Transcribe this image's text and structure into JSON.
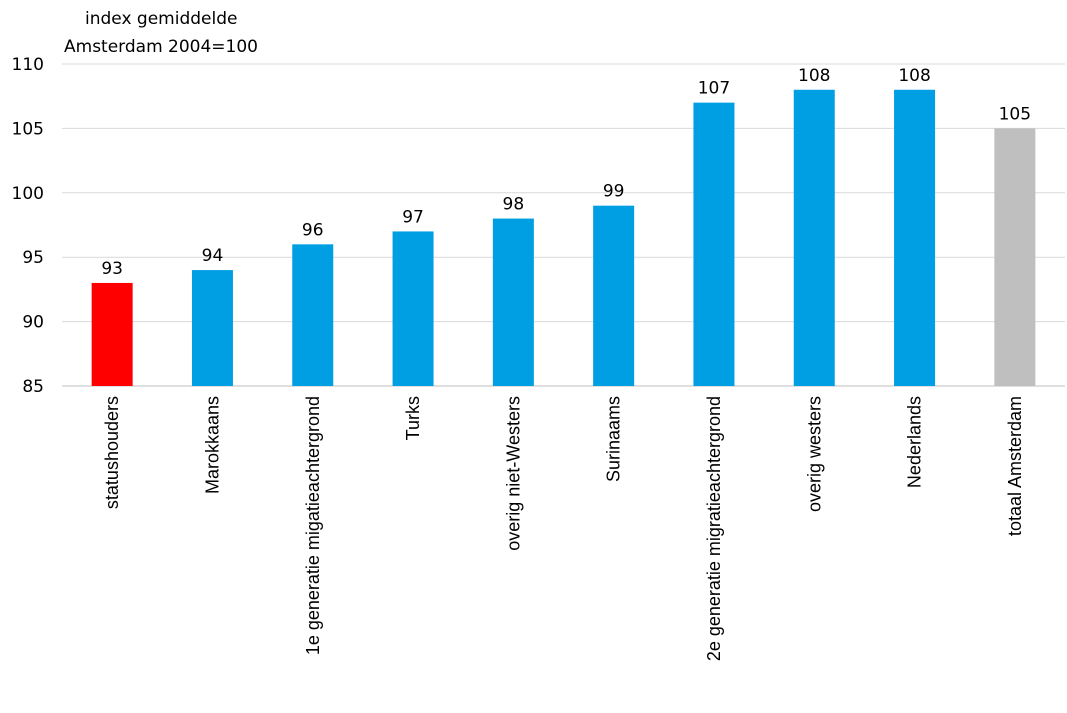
{
  "chart_data": {
    "type": "bar",
    "title": "",
    "ylabel_lines": [
      "index gemiddelde",
      "Amsterdam 2004=100"
    ],
    "xlabel": "",
    "ylim": [
      85,
      110
    ],
    "yticks": [
      85,
      90,
      95,
      100,
      105,
      110
    ],
    "grid": true,
    "categories": [
      "statushouders",
      "Marokkaans",
      "1e generatie migatieachtergrond",
      "Turks",
      "overig niet-Westers",
      "Surinaams",
      "2e generatie migratieachtergrond",
      "overig westers",
      "Nederlands",
      "totaal Amsterdam"
    ],
    "values": [
      93,
      94,
      96,
      97,
      98,
      99,
      107,
      108,
      108,
      105
    ],
    "colors": [
      "#ff0000",
      "#009fe3",
      "#009fe3",
      "#009fe3",
      "#009fe3",
      "#009fe3",
      "#009fe3",
      "#009fe3",
      "#009fe3",
      "#bfbfbf"
    ]
  }
}
